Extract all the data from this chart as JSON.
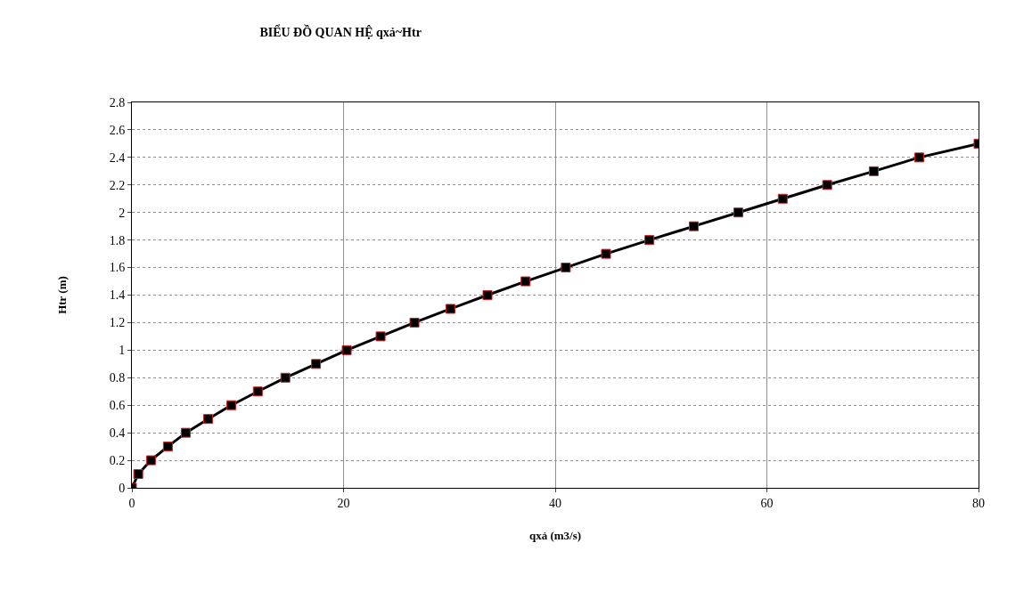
{
  "chart_data": {
    "type": "line",
    "title": "BIỂU ĐỒ QUAN HỆ qxả~Htr",
    "xlabel": "qxả (m3/s)",
    "ylabel": "Htr (m)",
    "x": [
      0,
      0.6,
      1.8,
      3.4,
      5.1,
      7.2,
      9.4,
      11.9,
      14.5,
      17.4,
      20.3,
      23.5,
      26.7,
      30.1,
      33.6,
      37.2,
      41.0,
      44.8,
      48.9,
      53.1,
      57.3,
      61.5,
      65.7,
      70.1,
      74.4,
      80
    ],
    "series": [
      {
        "color": "#000000",
        "values": [
          0,
          0.1,
          0.2,
          0.3,
          0.4,
          0.5,
          0.6,
          0.7,
          0.8,
          0.9,
          1.0,
          1.1,
          1.2,
          1.3,
          1.4,
          1.5,
          1.6,
          1.7,
          1.8,
          1.9,
          2.0,
          2.1,
          2.2,
          2.3,
          2.4,
          2.5
        ]
      }
    ],
    "xlim": [
      0,
      80
    ],
    "xticks": [
      0,
      20,
      40,
      60,
      80
    ],
    "ylim": [
      0,
      2.8
    ],
    "yticks": [
      0,
      0.2,
      0.4,
      0.6,
      0.8,
      1,
      1.2,
      1.4,
      1.6,
      1.8,
      2,
      2.2,
      2.4,
      2.6,
      2.8
    ],
    "grid": true,
    "marker": "square",
    "line_style": "solid"
  }
}
